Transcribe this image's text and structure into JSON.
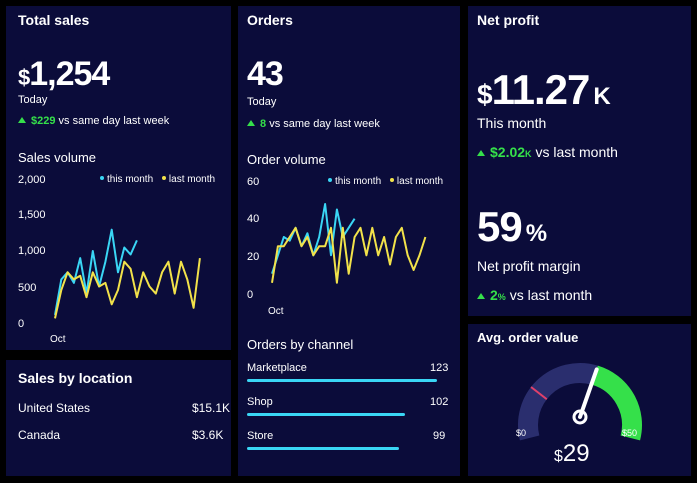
{
  "colors": {
    "panel": "#0b0c3a",
    "cyan": "#3ad6f5",
    "yellow": "#f2e24a",
    "green": "#35e04a",
    "gauge_bg": "#2a2e6e",
    "marker": "#e0406a"
  },
  "total_sales": {
    "title": "Total sales",
    "currency": "$",
    "value": "1,254",
    "period": "Today",
    "delta": "$229",
    "delta_label": "vs same day last week",
    "chart_title": "Sales volume",
    "legend": {
      "a": "this month",
      "b": "last month"
    },
    "y_ticks": [
      "2,000",
      "1,500",
      "1,000",
      "500",
      "0"
    ],
    "x_label": "Oct"
  },
  "orders": {
    "title": "Orders",
    "value": "43",
    "period": "Today",
    "delta": "8",
    "delta_label": "vs same day last week",
    "chart_title": "Order volume",
    "legend": {
      "a": "this month",
      "b": "last month"
    },
    "y_ticks": [
      "60",
      "40",
      "20",
      "0"
    ],
    "x_label": "Oct",
    "channel_title": "Orders by channel",
    "channels": [
      {
        "name": "Marketplace",
        "value": "123",
        "frac": 1.0
      },
      {
        "name": "Shop",
        "value": "102",
        "frac": 0.83
      },
      {
        "name": "Store",
        "value": "99",
        "frac": 0.8
      }
    ]
  },
  "net_profit": {
    "title": "Net profit",
    "currency": "$",
    "value": "11.27",
    "unit": "K",
    "period": "This month",
    "delta": "$2.02",
    "delta_unit": "K",
    "delta_label": "vs last month",
    "margin_value": "59",
    "margin_unit": "%",
    "margin_label": "Net profit margin",
    "margin_delta": "2",
    "margin_delta_unit": "%",
    "margin_delta_label": "vs last month"
  },
  "location": {
    "title": "Sales by location",
    "rows": [
      {
        "name": "United States",
        "value": "$15.1K"
      },
      {
        "name": "Canada",
        "value": "$3.6K"
      }
    ]
  },
  "avg_order": {
    "title": "Avg. order value",
    "min": "$0",
    "max": "$50",
    "currency": "$",
    "value": "29",
    "level": 0.58
  },
  "chart_data": [
    {
      "type": "line",
      "title": "Sales volume",
      "ylim": [
        0,
        2000
      ],
      "x_label": "Oct",
      "series": [
        {
          "name": "this month",
          "values": [
            100,
            600,
            700,
            550,
            900,
            400,
            1000,
            500,
            850,
            1300,
            700,
            1050,
            950,
            1150
          ]
        },
        {
          "name": "last month",
          "values": [
            50,
            450,
            700,
            600,
            650,
            350,
            700,
            500,
            550,
            250,
            450,
            850,
            750,
            350,
            700,
            500,
            400,
            700,
            850,
            400,
            850,
            600,
            200,
            900
          ]
        }
      ]
    },
    {
      "type": "line",
      "title": "Order volume",
      "ylim": [
        0,
        60
      ],
      "x_label": "Oct",
      "series": [
        {
          "name": "this month",
          "values": [
            10,
            20,
            30,
            28,
            35,
            25,
            32,
            20,
            30,
            48,
            20,
            45,
            30,
            35,
            40
          ]
        },
        {
          "name": "last month",
          "values": [
            5,
            25,
            25,
            30,
            35,
            25,
            30,
            20,
            25,
            25,
            35,
            5,
            35,
            10,
            30,
            35,
            20,
            35,
            20,
            30,
            15,
            30,
            35,
            20,
            12,
            20,
            30
          ]
        }
      ]
    }
  ]
}
